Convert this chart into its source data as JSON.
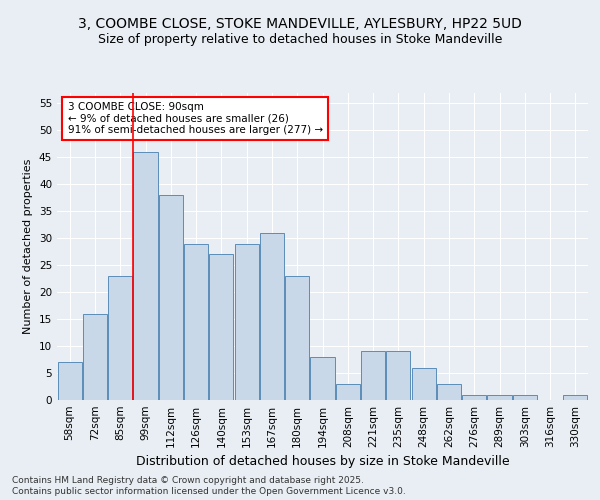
{
  "title1": "3, COOMBE CLOSE, STOKE MANDEVILLE, AYLESBURY, HP22 5UD",
  "title2": "Size of property relative to detached houses in Stoke Mandeville",
  "xlabel": "Distribution of detached houses by size in Stoke Mandeville",
  "ylabel": "Number of detached properties",
  "categories": [
    "58sqm",
    "72sqm",
    "85sqm",
    "99sqm",
    "112sqm",
    "126sqm",
    "140sqm",
    "153sqm",
    "167sqm",
    "180sqm",
    "194sqm",
    "208sqm",
    "221sqm",
    "235sqm",
    "248sqm",
    "262sqm",
    "276sqm",
    "289sqm",
    "303sqm",
    "316sqm",
    "330sqm"
  ],
  "values": [
    7,
    16,
    23,
    46,
    38,
    29,
    27,
    29,
    31,
    23,
    8,
    3,
    9,
    9,
    6,
    3,
    1,
    1,
    1,
    0,
    1
  ],
  "bar_color": "#c8d8e8",
  "bar_edge_color": "#5b8db8",
  "vline_index": 2.5,
  "annotation_text": "3 COOMBE CLOSE: 90sqm\n← 9% of detached houses are smaller (26)\n91% of semi-detached houses are larger (277) →",
  "annotation_box_color": "#ffffff",
  "annotation_box_edge_color": "red",
  "vline_color": "red",
  "ylim": [
    0,
    57
  ],
  "yticks": [
    0,
    5,
    10,
    15,
    20,
    25,
    30,
    35,
    40,
    45,
    50,
    55
  ],
  "background_color": "#e8eef4",
  "footer_line1": "Contains HM Land Registry data © Crown copyright and database right 2025.",
  "footer_line2": "Contains public sector information licensed under the Open Government Licence v3.0.",
  "title1_fontsize": 10,
  "title2_fontsize": 9,
  "xlabel_fontsize": 9,
  "ylabel_fontsize": 8,
  "tick_fontsize": 7.5,
  "annotation_fontsize": 7.5,
  "footer_fontsize": 6.5
}
